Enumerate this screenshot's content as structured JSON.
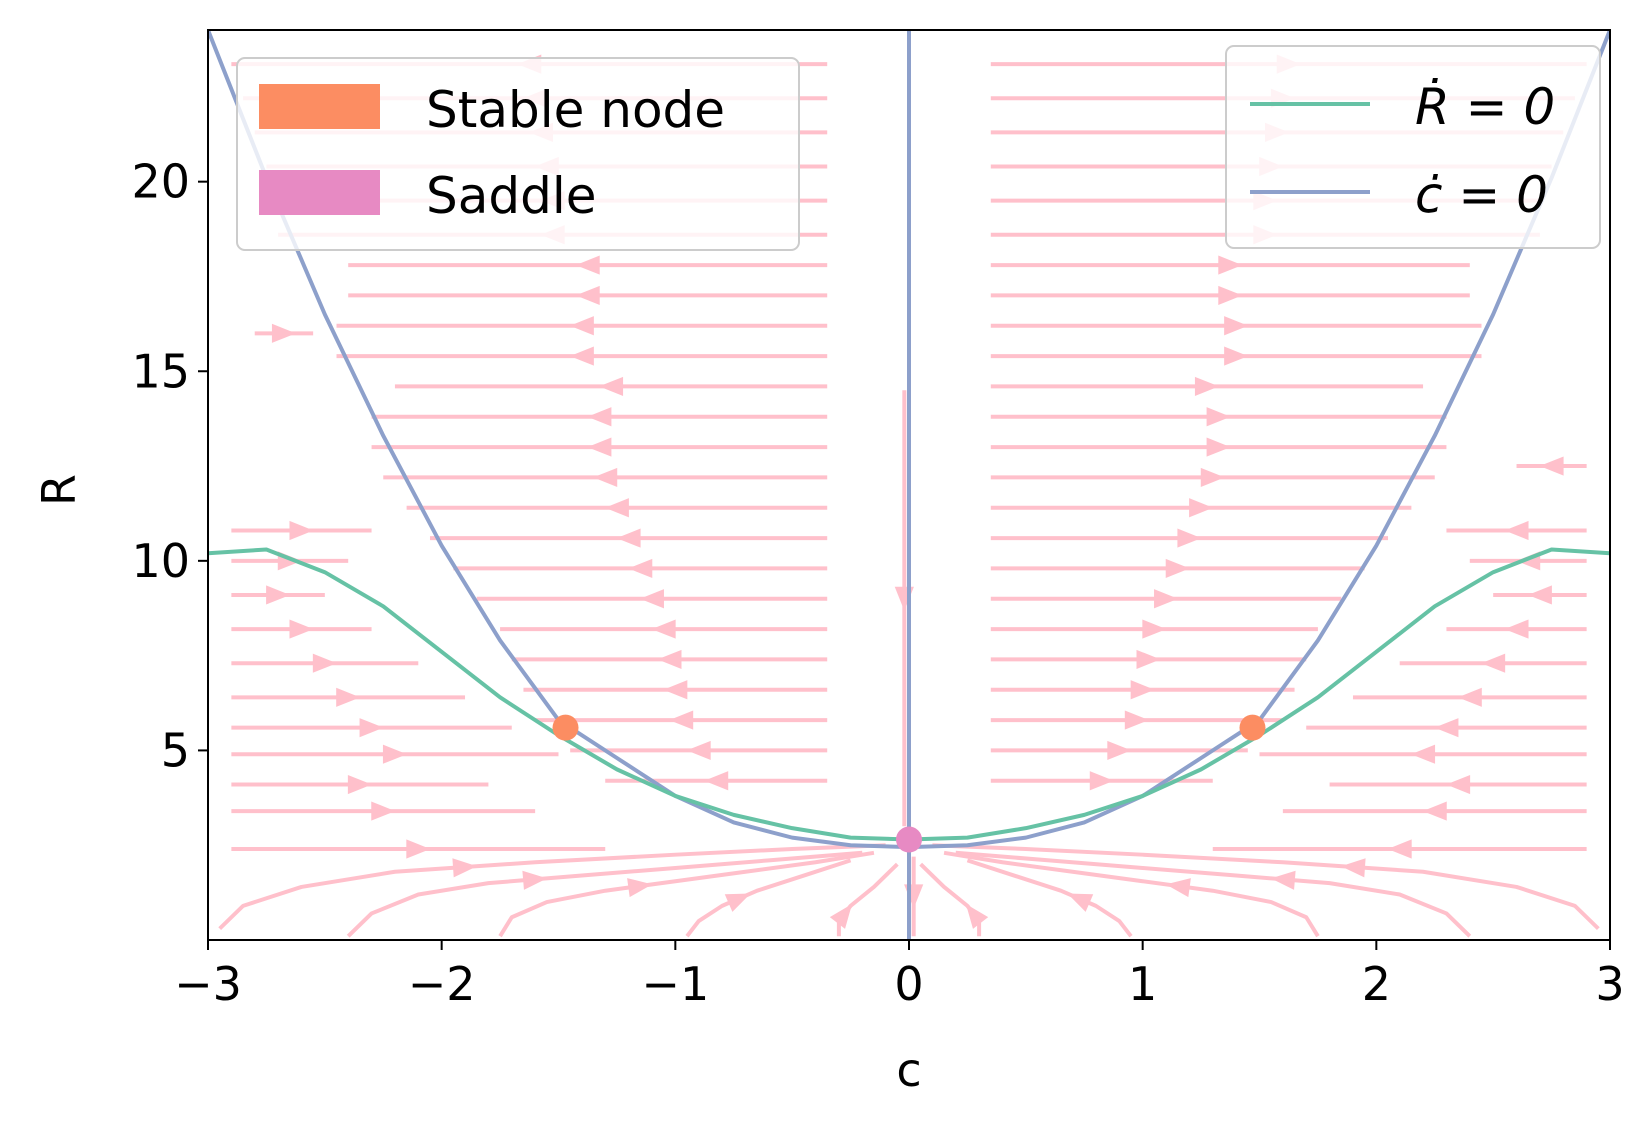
{
  "chart_data": {
    "type": "line",
    "title": "",
    "xlabel": "c",
    "ylabel": "R",
    "xlim": [
      -3,
      3
    ],
    "ylim": [
      0,
      24
    ],
    "xticks": [
      -3,
      -2,
      -1,
      0,
      1,
      2,
      3
    ],
    "xtick_labels": [
      "−3",
      "−2",
      "−1",
      "0",
      "1",
      "2",
      "3"
    ],
    "yticks": [
      5,
      10,
      15,
      20
    ],
    "ytick_labels": [
      "5",
      "10",
      "15",
      "20"
    ],
    "grid": false,
    "colors": {
      "r_nullcline": "#66c2a5",
      "c_nullcline": "#8da0cb",
      "stable_node": "#fc8d62",
      "saddle": "#e78ac3",
      "streamlines": "#ffc0cb"
    },
    "series": [
      {
        "name": "Ṙ = 0",
        "x": [
          -3.0,
          -2.75,
          -2.5,
          -2.25,
          -2.0,
          -1.75,
          -1.5,
          -1.25,
          -1.0,
          -0.75,
          -0.5,
          -0.25,
          0.0,
          0.25,
          0.5,
          0.75,
          1.0,
          1.25,
          1.5,
          1.75,
          2.0,
          2.25,
          2.5,
          2.75,
          3.0
        ],
        "y": [
          10.2,
          10.3,
          9.7,
          8.8,
          7.6,
          6.4,
          5.4,
          4.5,
          3.8,
          3.3,
          2.95,
          2.7,
          2.65,
          2.7,
          2.95,
          3.3,
          3.8,
          4.5,
          5.4,
          6.4,
          7.6,
          8.8,
          9.7,
          10.3,
          10.2
        ]
      },
      {
        "name": "ċ = 0",
        "x": [
          -3.0,
          -2.75,
          -2.5,
          -2.25,
          -2.0,
          -1.75,
          -1.5,
          -1.25,
          -1.0,
          -0.75,
          -0.5,
          -0.25,
          0.0,
          0.25,
          0.5,
          0.75,
          1.0,
          1.25,
          1.5,
          1.75,
          2.0,
          2.25,
          2.5,
          2.75,
          3.0
        ],
        "y": [
          24.0,
          20.1,
          16.5,
          13.3,
          10.4,
          7.9,
          5.8,
          4.8,
          3.8,
          3.1,
          2.7,
          2.5,
          2.45,
          2.5,
          2.7,
          3.1,
          3.8,
          4.8,
          5.8,
          7.9,
          10.4,
          13.3,
          16.5,
          20.1,
          24.0
        ],
        "vertical_line_x": 0
      }
    ],
    "points": [
      {
        "type": "Stable node",
        "x": -1.47,
        "y": 5.6
      },
      {
        "type": "Stable node",
        "x": 1.47,
        "y": 5.6
      },
      {
        "type": "Saddle",
        "x": 0.0,
        "y": 2.65
      }
    ],
    "legends": [
      {
        "placement": "upper-left",
        "entries": [
          "Stable node",
          "Saddle"
        ]
      },
      {
        "placement": "upper-right",
        "entries": [
          "Ṙ = 0",
          "ċ = 0"
        ]
      }
    ],
    "streamline_rows": [
      {
        "y": 2.4,
        "x_start": -2.9,
        "x_end": -1.3,
        "dir": 1
      },
      {
        "y": 3.4,
        "x_start": -2.9,
        "x_end": -1.6,
        "dir": 1
      },
      {
        "y": 4.1,
        "x_start": -2.9,
        "x_end": -1.8,
        "dir": 1
      },
      {
        "y": 4.9,
        "x_start": -2.9,
        "x_end": -1.5,
        "dir": 1
      },
      {
        "y": 5.6,
        "x_start": -2.9,
        "x_end": -1.7,
        "dir": 1
      },
      {
        "y": 6.4,
        "x_start": -2.9,
        "x_end": -1.9,
        "dir": 1
      },
      {
        "y": 7.3,
        "x_start": -2.9,
        "x_end": -2.1,
        "dir": 1
      },
      {
        "y": 8.2,
        "x_start": -2.9,
        "x_end": -2.3,
        "dir": 1
      },
      {
        "y": 9.1,
        "x_start": -2.9,
        "x_end": -2.5,
        "dir": 1
      },
      {
        "y": 10.0,
        "x_start": -2.9,
        "x_end": -2.4,
        "dir": 1
      },
      {
        "y": 10.8,
        "x_start": -2.9,
        "x_end": -2.3,
        "dir": 1
      },
      {
        "y": 4.2,
        "x_start": -1.3,
        "x_end": -0.35,
        "dir": -1
      },
      {
        "y": 5.0,
        "x_start": -1.45,
        "x_end": -0.35,
        "dir": -1
      },
      {
        "y": 5.8,
        "x_start": -1.6,
        "x_end": -0.35,
        "dir": -1
      },
      {
        "y": 6.6,
        "x_start": -1.65,
        "x_end": -0.35,
        "dir": -1
      },
      {
        "y": 7.4,
        "x_start": -1.7,
        "x_end": -0.35,
        "dir": -1
      },
      {
        "y": 8.2,
        "x_start": -1.75,
        "x_end": -0.35,
        "dir": -1
      },
      {
        "y": 9.0,
        "x_start": -1.85,
        "x_end": -0.35,
        "dir": -1
      },
      {
        "y": 9.8,
        "x_start": -1.95,
        "x_end": -0.35,
        "dir": -1
      },
      {
        "y": 10.6,
        "x_start": -2.05,
        "x_end": -0.35,
        "dir": -1
      },
      {
        "y": 11.4,
        "x_start": -2.15,
        "x_end": -0.35,
        "dir": -1
      },
      {
        "y": 12.2,
        "x_start": -2.25,
        "x_end": -0.35,
        "dir": -1
      },
      {
        "y": 13.0,
        "x_start": -2.3,
        "x_end": -0.35,
        "dir": -1
      },
      {
        "y": 13.8,
        "x_start": -2.3,
        "x_end": -0.35,
        "dir": -1
      },
      {
        "y": 14.6,
        "x_start": -2.2,
        "x_end": -0.35,
        "dir": -1
      },
      {
        "y": 15.4,
        "x_start": -2.45,
        "x_end": -0.35,
        "dir": -1
      },
      {
        "y": 16.2,
        "x_start": -2.45,
        "x_end": -0.35,
        "dir": -1
      },
      {
        "y": 17.0,
        "x_start": -2.4,
        "x_end": -0.35,
        "dir": -1
      },
      {
        "y": 17.8,
        "x_start": -2.4,
        "x_end": -0.35,
        "dir": -1
      },
      {
        "y": 18.6,
        "x_start": -2.7,
        "x_end": -0.35,
        "dir": -1
      },
      {
        "y": 19.5,
        "x_start": -2.7,
        "x_end": -0.35,
        "dir": -1
      },
      {
        "y": 20.4,
        "x_start": -2.75,
        "x_end": -0.35,
        "dir": -1
      },
      {
        "y": 21.3,
        "x_start": -2.8,
        "x_end": -0.35,
        "dir": -1
      },
      {
        "y": 22.2,
        "x_start": -2.85,
        "x_end": -0.35,
        "dir": -1
      },
      {
        "y": 23.1,
        "x_start": -2.9,
        "x_end": -0.35,
        "dir": -1
      },
      {
        "y": 2.4,
        "x_start": 1.3,
        "x_end": 2.9,
        "dir": -1
      },
      {
        "y": 3.4,
        "x_start": 1.6,
        "x_end": 2.9,
        "dir": -1
      },
      {
        "y": 4.1,
        "x_start": 1.8,
        "x_end": 2.9,
        "dir": -1
      },
      {
        "y": 4.9,
        "x_start": 1.5,
        "x_end": 2.9,
        "dir": -1
      },
      {
        "y": 5.6,
        "x_start": 1.7,
        "x_end": 2.9,
        "dir": -1
      },
      {
        "y": 6.4,
        "x_start": 1.9,
        "x_end": 2.9,
        "dir": -1
      },
      {
        "y": 7.3,
        "x_start": 2.1,
        "x_end": 2.9,
        "dir": -1
      },
      {
        "y": 8.2,
        "x_start": 2.3,
        "x_end": 2.9,
        "dir": -1
      },
      {
        "y": 9.1,
        "x_start": 2.5,
        "x_end": 2.9,
        "dir": -1
      },
      {
        "y": 10.0,
        "x_start": 2.4,
        "x_end": 2.9,
        "dir": -1
      },
      {
        "y": 10.8,
        "x_start": 2.3,
        "x_end": 2.9,
        "dir": -1
      },
      {
        "y": 4.2,
        "x_start": 0.35,
        "x_end": 1.3,
        "dir": 1
      },
      {
        "y": 5.0,
        "x_start": 0.35,
        "x_end": 1.45,
        "dir": 1
      },
      {
        "y": 5.8,
        "x_start": 0.35,
        "x_end": 1.6,
        "dir": 1
      },
      {
        "y": 6.6,
        "x_start": 0.35,
        "x_end": 1.65,
        "dir": 1
      },
      {
        "y": 7.4,
        "x_start": 0.35,
        "x_end": 1.7,
        "dir": 1
      },
      {
        "y": 8.2,
        "x_start": 0.35,
        "x_end": 1.75,
        "dir": 1
      },
      {
        "y": 9.0,
        "x_start": 0.35,
        "x_end": 1.85,
        "dir": 1
      },
      {
        "y": 9.8,
        "x_start": 0.35,
        "x_end": 1.95,
        "dir": 1
      },
      {
        "y": 10.6,
        "x_start": 0.35,
        "x_end": 2.05,
        "dir": 1
      },
      {
        "y": 11.4,
        "x_start": 0.35,
        "x_end": 2.15,
        "dir": 1
      },
      {
        "y": 12.2,
        "x_start": 0.35,
        "x_end": 2.25,
        "dir": 1
      },
      {
        "y": 13.0,
        "x_start": 0.35,
        "x_end": 2.3,
        "dir": 1
      },
      {
        "y": 13.8,
        "x_start": 0.35,
        "x_end": 2.3,
        "dir": 1
      },
      {
        "y": 14.6,
        "x_start": 0.35,
        "x_end": 2.2,
        "dir": 1
      },
      {
        "y": 15.4,
        "x_start": 0.35,
        "x_end": 2.45,
        "dir": 1
      },
      {
        "y": 16.2,
        "x_start": 0.35,
        "x_end": 2.45,
        "dir": 1
      },
      {
        "y": 17.0,
        "x_start": 0.35,
        "x_end": 2.4,
        "dir": 1
      },
      {
        "y": 17.8,
        "x_start": 0.35,
        "x_end": 2.4,
        "dir": 1
      },
      {
        "y": 18.6,
        "x_start": 0.35,
        "x_end": 2.7,
        "dir": 1
      },
      {
        "y": 19.5,
        "x_start": 0.35,
        "x_end": 2.7,
        "dir": 1
      },
      {
        "y": 20.4,
        "x_start": 0.35,
        "x_end": 2.75,
        "dir": 1
      },
      {
        "y": 21.3,
        "x_start": 0.35,
        "x_end": 2.8,
        "dir": 1
      },
      {
        "y": 22.2,
        "x_start": 0.35,
        "x_end": 2.85,
        "dir": 1
      },
      {
        "y": 23.1,
        "x_start": 0.35,
        "x_end": 2.9,
        "dir": 1
      },
      {
        "y": 16.0,
        "x_start": -2.8,
        "x_end": -2.55,
        "dir": 1
      },
      {
        "y": 12.5,
        "x_start": 2.6,
        "x_end": 2.9,
        "dir": -1
      }
    ],
    "streamline_curves": [
      {
        "x": [
          -2.95,
          -2.85,
          -2.6,
          -2.2,
          -1.6,
          -1.0,
          -0.5,
          -0.1
        ],
        "y": [
          0.3,
          0.9,
          1.4,
          1.8,
          2.05,
          2.25,
          2.4,
          2.5
        ],
        "dir": 1
      },
      {
        "x": [
          -2.4,
          -2.3,
          -2.1,
          -1.8,
          -1.4,
          -1.0,
          -0.6,
          -0.2
        ],
        "y": [
          0.1,
          0.7,
          1.2,
          1.5,
          1.7,
          1.9,
          2.1,
          2.3
        ],
        "dir": 1
      },
      {
        "x": [
          -1.75,
          -1.7,
          -1.55,
          -1.3,
          -1.0,
          -0.7,
          -0.4,
          -0.15
        ],
        "y": [
          0.1,
          0.6,
          1.0,
          1.3,
          1.55,
          1.8,
          2.05,
          2.3
        ],
        "dir": 1
      },
      {
        "x": [
          -0.95,
          -0.9,
          -0.8,
          -0.65,
          -0.45,
          -0.25
        ],
        "y": [
          0.1,
          0.5,
          0.9,
          1.3,
          1.7,
          2.1
        ],
        "dir": 1
      },
      {
        "x": [
          -0.3,
          -0.3,
          -0.25,
          -0.15,
          -0.05
        ],
        "y": [
          0.1,
          0.5,
          0.9,
          1.4,
          2.0
        ],
        "dir": 1
      },
      {
        "x": [
          2.95,
          2.85,
          2.6,
          2.2,
          1.6,
          1.0,
          0.5,
          0.1
        ],
        "y": [
          0.3,
          0.9,
          1.4,
          1.8,
          2.05,
          2.25,
          2.4,
          2.5
        ],
        "dir": -1
      },
      {
        "x": [
          2.4,
          2.3,
          2.1,
          1.8,
          1.4,
          1.0,
          0.6,
          0.2
        ],
        "y": [
          0.1,
          0.7,
          1.2,
          1.5,
          1.7,
          1.9,
          2.1,
          2.3
        ],
        "dir": -1
      },
      {
        "x": [
          1.75,
          1.7,
          1.55,
          1.3,
          1.0,
          0.7,
          0.4,
          0.15
        ],
        "y": [
          0.1,
          0.6,
          1.0,
          1.3,
          1.55,
          1.8,
          2.05,
          2.3
        ],
        "dir": -1
      },
      {
        "x": [
          0.95,
          0.9,
          0.8,
          0.65,
          0.45,
          0.25
        ],
        "y": [
          0.1,
          0.5,
          0.9,
          1.3,
          1.7,
          2.1
        ],
        "dir": -1
      },
      {
        "x": [
          0.3,
          0.3,
          0.25,
          0.15,
          0.05
        ],
        "y": [
          0.1,
          0.5,
          0.9,
          1.4,
          2.0
        ],
        "dir": -1
      },
      {
        "x": [
          -0.02,
          -0.02,
          -0.02,
          -0.02
        ],
        "y": [
          14.5,
          11.0,
          7.0,
          3.0
        ],
        "dir": 1
      },
      {
        "x": [
          0.02,
          0.02,
          0.02,
          0.02
        ],
        "y": [
          2.2,
          1.5,
          0.8,
          0.1
        ],
        "dir": 1
      }
    ]
  }
}
